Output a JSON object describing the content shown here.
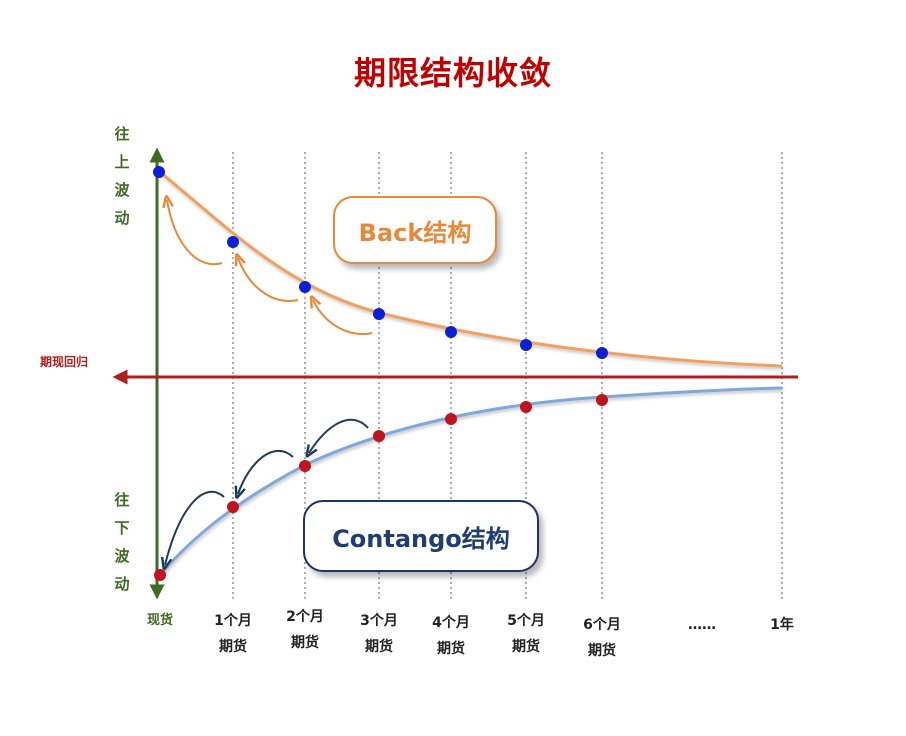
{
  "title": "期限结构收敛",
  "axis": {
    "up_label": [
      "往",
      "上",
      "波",
      "动"
    ],
    "down_label": [
      "往",
      "下",
      "波",
      "动"
    ],
    "convergence_label": "期现回归"
  },
  "x_labels": [
    {
      "line1": "现货",
      "line2": ""
    },
    {
      "line1": "1个月",
      "line2": "期货"
    },
    {
      "line1": "2个月",
      "line2": "期货"
    },
    {
      "line1": "3个月",
      "line2": "期货"
    },
    {
      "line1": "4个月",
      "line2": "期货"
    },
    {
      "line1": "5个月",
      "line2": "期货"
    },
    {
      "line1": "6个月",
      "line2": "期货"
    },
    {
      "line1": "……",
      "line2": ""
    },
    {
      "line1": "1年",
      "line2": ""
    }
  ],
  "back_structure": {
    "label": "Back结构",
    "color": "#e8893a",
    "point_color": "#0b1fd6"
  },
  "contango_structure": {
    "label": "Contango结构",
    "color": "#6b9bd8",
    "point_color": "#c0131d"
  },
  "colors": {
    "axis": "#3f6a24",
    "convergence_arrow": "#b01e1e",
    "grid": "#888888"
  }
}
